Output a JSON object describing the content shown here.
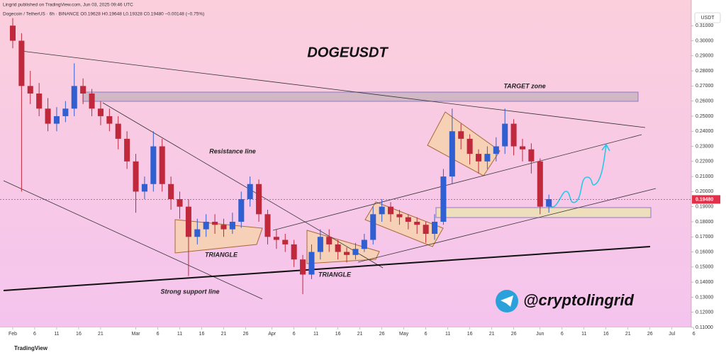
{
  "header": {
    "publisher": "Lingrid published on TradingView.com, Jun 03, 2025 09:46 UTC",
    "symbol": "Dogecoin / TetherUS · 6h · BINANCE  O0.19628  H0.19648  L0.19328  C0.19480  −0.00148 (−0.75%)"
  },
  "footer": "TradingView",
  "chart_data": {
    "type": "candlestick",
    "title": "DOGEUSDT",
    "y_axis_unit": "USDT",
    "annotations": [
      "TARGET zone",
      "Resistance line",
      "TRIANGLE",
      "TRIANGLE",
      "Strong support line",
      "@cryptolingrid"
    ],
    "up_color": "#2f5fd0",
    "down_color": "#c0283c",
    "last_price": {
      "value": 0.1948,
      "label": "0.19480"
    },
    "x": [
      0,
      2,
      4,
      6,
      8,
      10,
      12,
      14,
      16,
      18,
      20,
      22,
      24,
      26,
      28,
      30,
      32,
      34,
      36,
      38,
      40,
      42,
      44,
      46,
      48,
      50,
      52,
      54,
      56,
      58,
      60,
      62,
      64,
      66,
      68,
      70,
      72,
      74,
      76,
      78,
      80,
      82,
      84,
      86,
      88,
      90,
      92,
      94,
      96,
      98,
      100,
      102,
      104,
      106,
      108,
      110,
      112,
      114,
      116,
      118,
      120,
      122
    ],
    "open": [
      0.31,
      0.3,
      0.27,
      0.265,
      0.255,
      0.245,
      0.25,
      0.255,
      0.27,
      0.265,
      0.255,
      0.25,
      0.245,
      0.235,
      0.22,
      0.2,
      0.205,
      0.23,
      0.205,
      0.195,
      0.19,
      0.17,
      0.175,
      0.18,
      0.178,
      0.175,
      0.18,
      0.195,
      0.205,
      0.185,
      0.17,
      0.168,
      0.165,
      0.155,
      0.145,
      0.16,
      0.17,
      0.165,
      0.16,
      0.158,
      0.162,
      0.168,
      0.185,
      0.19,
      0.185,
      0.183,
      0.18,
      0.178,
      0.172,
      0.18,
      0.21,
      0.24,
      0.235,
      0.225,
      0.22,
      0.225,
      0.23,
      0.245,
      0.23,
      0.228,
      0.22,
      0.19
    ],
    "high": [
      0.315,
      0.305,
      0.28,
      0.272,
      0.262,
      0.256,
      0.26,
      0.285,
      0.275,
      0.268,
      0.26,
      0.255,
      0.25,
      0.24,
      0.225,
      0.21,
      0.24,
      0.235,
      0.21,
      0.2,
      0.195,
      0.182,
      0.185,
      0.185,
      0.182,
      0.186,
      0.2,
      0.21,
      0.208,
      0.188,
      0.175,
      0.172,
      0.168,
      0.158,
      0.165,
      0.175,
      0.175,
      0.168,
      0.163,
      0.166,
      0.172,
      0.19,
      0.195,
      0.193,
      0.188,
      0.185,
      0.183,
      0.18,
      0.185,
      0.215,
      0.255,
      0.245,
      0.238,
      0.228,
      0.23,
      0.236,
      0.255,
      0.248,
      0.235,
      0.232,
      0.222,
      0.198
    ],
    "low": [
      0.295,
      0.2,
      0.258,
      0.25,
      0.24,
      0.24,
      0.246,
      0.25,
      0.258,
      0.25,
      0.244,
      0.24,
      0.228,
      0.215,
      0.186,
      0.195,
      0.2,
      0.2,
      0.188,
      0.182,
      0.144,
      0.165,
      0.17,
      0.172,
      0.17,
      0.172,
      0.176,
      0.19,
      0.18,
      0.165,
      0.162,
      0.16,
      0.15,
      0.132,
      0.142,
      0.155,
      0.16,
      0.155,
      0.153,
      0.155,
      0.16,
      0.165,
      0.18,
      0.18,
      0.178,
      0.175,
      0.172,
      0.166,
      0.168,
      0.178,
      0.205,
      0.228,
      0.218,
      0.212,
      0.215,
      0.22,
      0.225,
      0.224,
      0.22,
      0.212,
      0.185,
      0.186
    ],
    "close": [
      0.3,
      0.27,
      0.265,
      0.255,
      0.245,
      0.25,
      0.255,
      0.27,
      0.265,
      0.255,
      0.25,
      0.245,
      0.235,
      0.22,
      0.2,
      0.205,
      0.23,
      0.205,
      0.195,
      0.19,
      0.17,
      0.175,
      0.18,
      0.178,
      0.175,
      0.18,
      0.195,
      0.205,
      0.185,
      0.17,
      0.168,
      0.165,
      0.155,
      0.145,
      0.16,
      0.17,
      0.165,
      0.16,
      0.158,
      0.162,
      0.168,
      0.185,
      0.19,
      0.185,
      0.183,
      0.18,
      0.178,
      0.172,
      0.18,
      0.21,
      0.24,
      0.235,
      0.225,
      0.22,
      0.225,
      0.23,
      0.245,
      0.23,
      0.228,
      0.22,
      0.19,
      0.195
    ],
    "xlim": [
      -2.9,
      154.4
    ],
    "xticks": [
      {
        "value": 0,
        "label": "Feb"
      },
      {
        "value": 5,
        "label": "6"
      },
      {
        "value": 10,
        "label": "11"
      },
      {
        "value": 15,
        "label": "16"
      },
      {
        "value": 20,
        "label": "21"
      },
      {
        "value": 28,
        "label": "Mar"
      },
      {
        "value": 33,
        "label": "6"
      },
      {
        "value": 38,
        "label": "11"
      },
      {
        "value": 43,
        "label": "16"
      },
      {
        "value": 48,
        "label": "21"
      },
      {
        "value": 53,
        "label": "26"
      },
      {
        "value": 59,
        "label": "Apr"
      },
      {
        "value": 64,
        "label": "6"
      },
      {
        "value": 69,
        "label": "11"
      },
      {
        "value": 74,
        "label": "16"
      },
      {
        "value": 79,
        "label": "21"
      },
      {
        "value": 84,
        "label": "26"
      },
      {
        "value": 89,
        "label": "May"
      },
      {
        "value": 94,
        "label": "6"
      },
      {
        "value": 99,
        "label": "11"
      },
      {
        "value": 104,
        "label": "16"
      },
      {
        "value": 109,
        "label": "21"
      },
      {
        "value": 114,
        "label": "26"
      },
      {
        "value": 120,
        "label": "Jun"
      },
      {
        "value": 125,
        "label": "6"
      },
      {
        "value": 130,
        "label": "11"
      },
      {
        "value": 135,
        "label": "16"
      },
      {
        "value": 140,
        "label": "21"
      },
      {
        "value": 145,
        "label": "26"
      },
      {
        "value": 150,
        "label": "Jul"
      },
      {
        "value": 155,
        "label": "6"
      }
    ],
    "ylim": [
      0.11,
      0.327
    ],
    "yticks": [
      {
        "value": 0.11,
        "label": "0.11000"
      },
      {
        "value": 0.12,
        "label": "0.12000"
      },
      {
        "value": 0.13,
        "label": "0.13000"
      },
      {
        "value": 0.14,
        "label": "0.14000"
      },
      {
        "value": 0.15,
        "label": "0.15000"
      },
      {
        "value": 0.16,
        "label": "0.16000"
      },
      {
        "value": 0.17,
        "label": "0.17000"
      },
      {
        "value": 0.18,
        "label": "0.18000"
      },
      {
        "value": 0.19,
        "label": "0.19000"
      },
      {
        "value": 0.2,
        "label": "0.20000"
      },
      {
        "value": 0.21,
        "label": "0.21000"
      },
      {
        "value": 0.22,
        "label": "0.22000"
      },
      {
        "value": 0.23,
        "label": "0.23000"
      },
      {
        "value": 0.24,
        "label": "0.24000"
      },
      {
        "value": 0.25,
        "label": "0.25000"
      },
      {
        "value": 0.26,
        "label": "0.26000"
      },
      {
        "value": 0.27,
        "label": "0.27000"
      },
      {
        "value": 0.28,
        "label": "0.28000"
      },
      {
        "value": 0.29,
        "label": "0.29000"
      },
      {
        "value": 0.3,
        "label": "0.30000"
      },
      {
        "value": 0.31,
        "label": "0.31000"
      }
    ]
  }
}
